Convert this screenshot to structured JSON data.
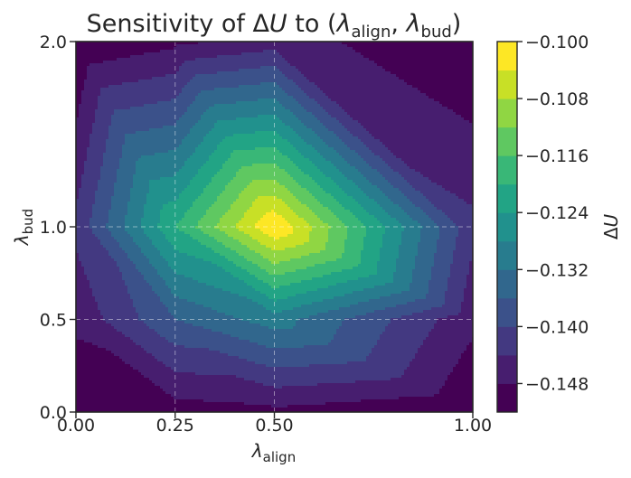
{
  "chart_data": {
    "type": "heatmap",
    "subtype": "filled-contour",
    "title": {
      "prefix": "Sensitivity of ",
      "delta": "Δ",
      "var": "U",
      "middle": " to (",
      "l1": "λ",
      "l1_sub": "align",
      "sep": ", ",
      "l2": "λ",
      "l2_sub": "bud",
      "suffix": ")"
    },
    "xlabel": {
      "symbol": "λ",
      "sub": "align"
    },
    "ylabel": {
      "symbol": "λ",
      "sub": "bud"
    },
    "colorbar_label": {
      "delta": "Δ",
      "var": "U"
    },
    "x": [
      0.0,
      0.25,
      0.5,
      1.0
    ],
    "y": [
      0.0,
      0.5,
      1.0,
      2.0
    ],
    "z": [
      [
        -0.152,
        -0.15,
        -0.149,
        -0.152
      ],
      [
        -0.147,
        -0.136,
        -0.13,
        -0.147
      ],
      [
        -0.143,
        -0.12,
        -0.1,
        -0.143
      ],
      [
        -0.152,
        -0.149,
        -0.146,
        -0.152
      ]
    ],
    "xlim": [
      0.0,
      1.0
    ],
    "ylim": [
      0.0,
      2.0
    ],
    "xticks": [
      "0.00",
      "0.25",
      "0.50",
      "1.00"
    ],
    "yticks": [
      "0.0",
      "0.5",
      "1.0",
      "2.0"
    ],
    "colorbar_ticks": [
      "−0.100",
      "−0.108",
      "−0.116",
      "−0.124",
      "−0.132",
      "−0.140",
      "−0.148"
    ],
    "colorbar_tick_values": [
      -0.1,
      -0.108,
      -0.116,
      -0.124,
      -0.132,
      -0.14,
      -0.148
    ],
    "levels": [
      -0.152,
      -0.148,
      -0.144,
      -0.14,
      -0.136,
      -0.132,
      -0.128,
      -0.124,
      -0.12,
      -0.116,
      -0.112,
      -0.108,
      -0.104,
      -0.1
    ],
    "colormap": "viridis",
    "grid": true,
    "grid_style": "dashed"
  }
}
